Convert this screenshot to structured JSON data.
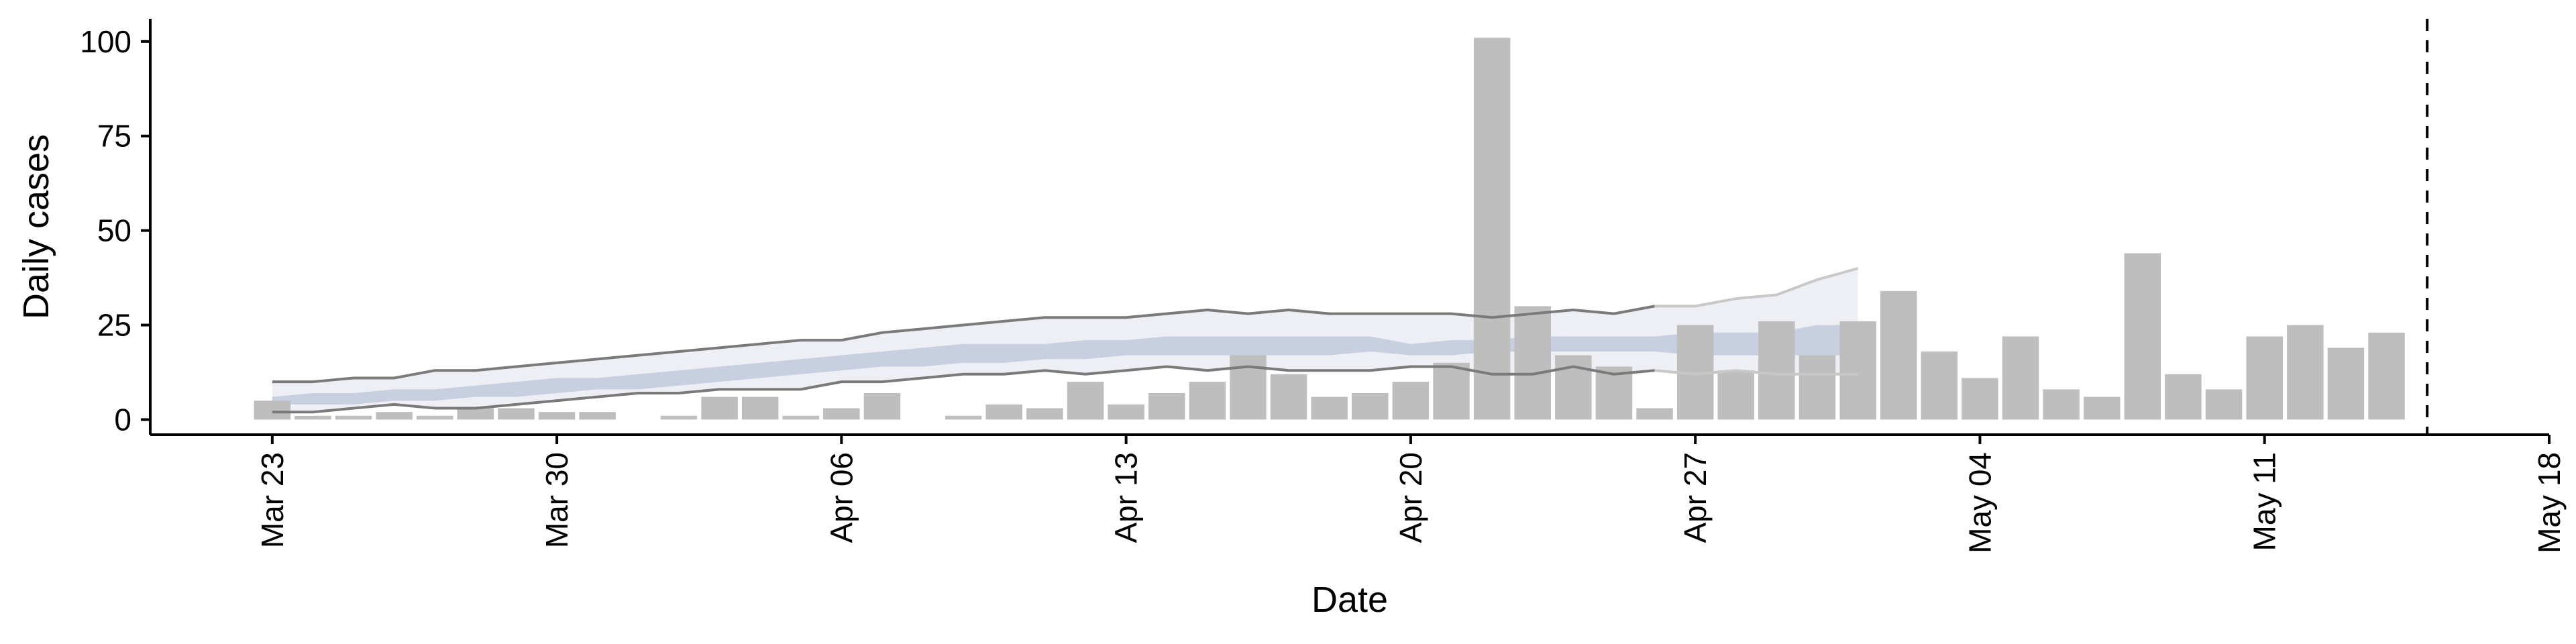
{
  "chart_data": {
    "type": "bar",
    "title": "",
    "xlabel": "Date",
    "ylabel": "Daily cases",
    "ylim": [
      -4,
      106
    ],
    "y_ticks": [
      0,
      25,
      50,
      75,
      100
    ],
    "x_ticks": [
      {
        "date": "2020-03-23",
        "label": "Mar 23"
      },
      {
        "date": "2020-03-30",
        "label": "Mar 30"
      },
      {
        "date": "2020-04-06",
        "label": "Apr 06"
      },
      {
        "date": "2020-04-13",
        "label": "Apr 13"
      },
      {
        "date": "2020-04-20",
        "label": "Apr 20"
      },
      {
        "date": "2020-04-27",
        "label": "Apr 27"
      },
      {
        "date": "2020-05-04",
        "label": "May 04"
      },
      {
        "date": "2020-05-11",
        "label": "May 11"
      },
      {
        "date": "2020-05-18",
        "label": "May 18"
      }
    ],
    "xlim": [
      "2020-03-20",
      "2020-05-18"
    ],
    "grid": false,
    "dashed_vline_date": "2020-05-15",
    "colors": {
      "bars": "#bebebe",
      "band_outer": "#dcdfea",
      "band_inner": "#aab4d2",
      "bound_line": "#7a7a7a",
      "bound_line_faded": "#c8c8c8"
    },
    "series": [
      {
        "kind": "bar",
        "start_date": "2020-03-23",
        "values": [
          5,
          1,
          1,
          2,
          1,
          3,
          3,
          2,
          2,
          0,
          1,
          6,
          6,
          1,
          3,
          7,
          0,
          1,
          4,
          3,
          10,
          4,
          7,
          10,
          17,
          12,
          6,
          7,
          10,
          15,
          101,
          30,
          17,
          14,
          3,
          25,
          13,
          26,
          17,
          26,
          34,
          18,
          11,
          22,
          8,
          6,
          44,
          12,
          8,
          22,
          25,
          19,
          23
        ]
      },
      {
        "kind": "band",
        "start_date": "2020-03-23",
        "upper_outer": [
          10,
          10,
          11,
          11,
          13,
          13,
          14,
          15,
          16,
          17,
          18,
          19,
          20,
          21,
          21,
          23,
          24,
          25,
          26,
          27,
          27,
          27,
          28,
          29,
          28,
          29,
          28,
          28,
          28,
          28,
          27,
          28,
          29,
          28,
          30,
          30,
          32,
          33,
          37,
          40
        ],
        "upper_inner": [
          6,
          7,
          7,
          8,
          8,
          9,
          10,
          11,
          11,
          12,
          13,
          14,
          15,
          16,
          17,
          18,
          19,
          20,
          20,
          20,
          21,
          21,
          22,
          22,
          22,
          22,
          22,
          22,
          20,
          21,
          21,
          22,
          22,
          22,
          22,
          23,
          23,
          23,
          25,
          25
        ],
        "lower_inner": [
          4,
          4,
          4,
          5,
          5,
          6,
          6,
          7,
          8,
          8,
          9,
          10,
          11,
          12,
          13,
          14,
          14,
          15,
          15,
          16,
          16,
          17,
          17,
          17,
          17,
          17,
          17,
          18,
          17,
          17,
          18,
          18,
          18,
          18,
          18,
          17,
          17,
          17,
          17,
          17
        ],
        "lower_outer": [
          2,
          2,
          3,
          4,
          3,
          3,
          4,
          5,
          6,
          7,
          7,
          8,
          8,
          8,
          10,
          10,
          11,
          12,
          12,
          13,
          12,
          13,
          14,
          13,
          14,
          13,
          13,
          13,
          14,
          14,
          12,
          12,
          14,
          12,
          13,
          12,
          13,
          12,
          12,
          12
        ]
      }
    ]
  }
}
